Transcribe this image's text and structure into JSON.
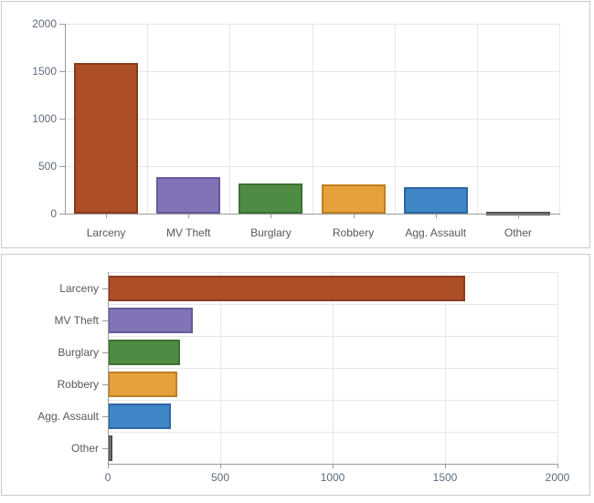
{
  "theme": {
    "panel_border_color": "#c9c9c9",
    "background_color": "#ffffff",
    "gridline_color": "#e7e7e7",
    "axis_color": "#9b9b9b",
    "value_label_color": "#5d6b7c",
    "category_label_color": "#595959"
  },
  "chart_data": [
    {
      "type": "bar",
      "orientation": "vertical",
      "title": "",
      "xlabel": "",
      "ylabel": "",
      "categories": [
        "Larceny",
        "MV Theft",
        "Burglary",
        "Robbery",
        "Agg. Assault",
        "Other"
      ],
      "values": [
        1590,
        380,
        320,
        310,
        280,
        20
      ],
      "value_axis": {
        "min": 0,
        "max": 2000,
        "ticks": [
          0,
          500,
          1000,
          1500,
          2000
        ]
      },
      "grid": true,
      "legend": false,
      "bar_fill": [
        "#ac4e26",
        "#8173b5",
        "#4e8c43",
        "#e5a23c",
        "#3f86c6",
        "#8a8a8a"
      ],
      "bar_border": [
        "#8a3a1c",
        "#665a9b",
        "#3b7330",
        "#c07e1f",
        "#2c67a5",
        "#4d4d4d"
      ]
    },
    {
      "type": "bar",
      "orientation": "horizontal",
      "title": "",
      "xlabel": "",
      "ylabel": "",
      "categories": [
        "Larceny",
        "MV Theft",
        "Burglary",
        "Robbery",
        "Agg. Assault",
        "Other"
      ],
      "values": [
        1590,
        380,
        320,
        310,
        280,
        20
      ],
      "value_axis": {
        "min": 0,
        "max": 2000,
        "ticks": [
          0,
          500,
          1000,
          1500,
          2000
        ]
      },
      "grid": true,
      "legend": false,
      "bar_fill": [
        "#ac4e26",
        "#8173b5",
        "#4e8c43",
        "#e5a23c",
        "#3f86c6",
        "#8a8a8a"
      ],
      "bar_border": [
        "#8a3a1c",
        "#665a9b",
        "#3b7330",
        "#c07e1f",
        "#2c67a5",
        "#4d4d4d"
      ]
    }
  ]
}
